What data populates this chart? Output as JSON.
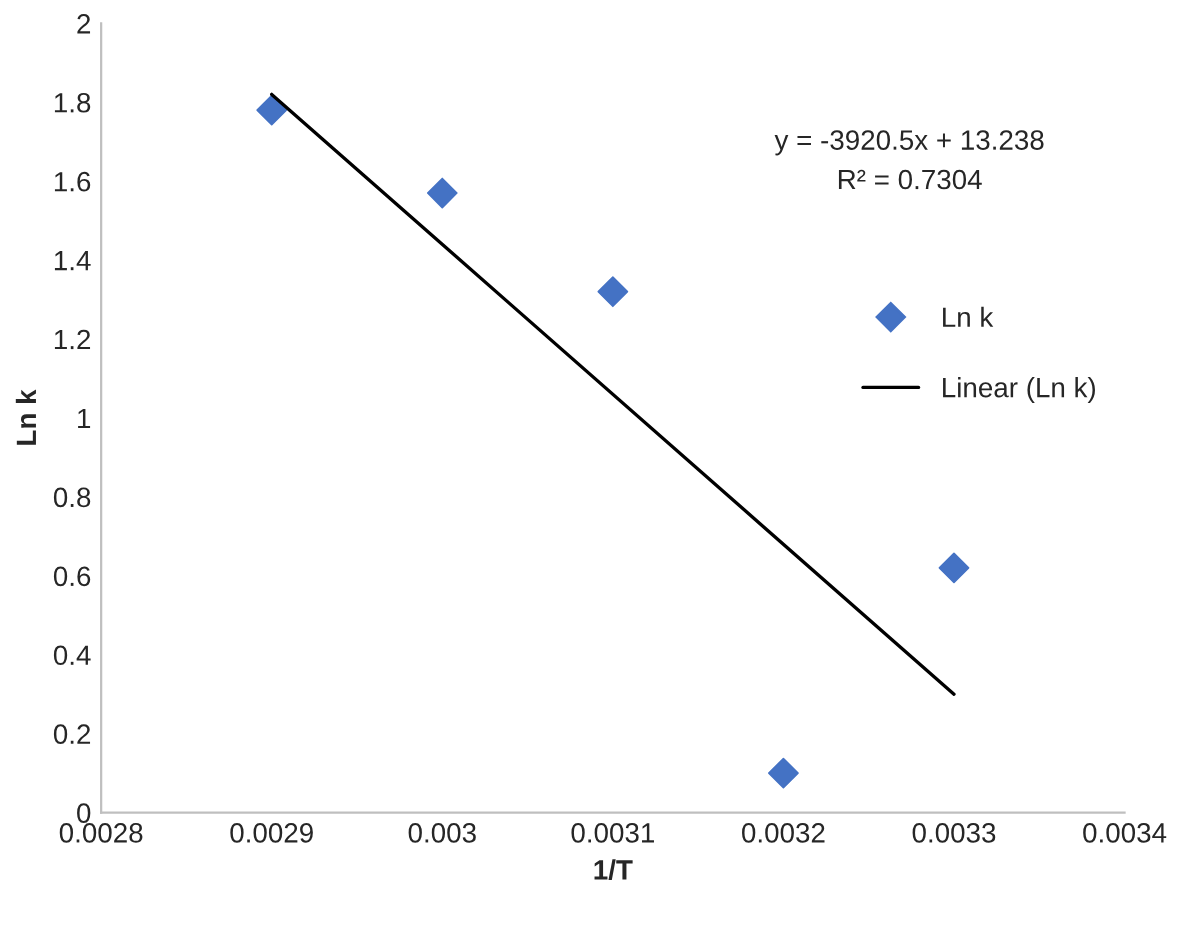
{
  "chart_data": {
    "type": "scatter",
    "xlabel": "1/T",
    "ylabel": "Ln k",
    "xlim": [
      0.0028,
      0.0034
    ],
    "xticks": [
      0.0028,
      0.0029,
      0.003,
      0.0031,
      0.0032,
      0.0033,
      0.0034
    ],
    "ylim": [
      0,
      2
    ],
    "yticks": [
      0,
      0.2,
      0.4,
      0.6,
      0.8,
      1,
      1.2,
      1.4,
      1.6,
      1.8,
      2
    ],
    "x": [
      0.0029,
      0.003,
      0.0031,
      0.0032,
      0.0033
    ],
    "series": [
      {
        "name": "Ln k",
        "color": "#4472c4",
        "marker": "diamond",
        "values": [
          1.78,
          1.57,
          1.32,
          0.1,
          0.62
        ]
      },
      {
        "name": "Linear (Ln k)",
        "type": "line",
        "color": "#000000",
        "marker": "none",
        "x": [
          0.0029,
          0.0033
        ],
        "values": [
          1.82,
          0.3
        ]
      }
    ],
    "annotations": [
      "y = -3920.5x + 13.238",
      "R² = 0.7304"
    ],
    "grid": false,
    "legend": "right"
  }
}
